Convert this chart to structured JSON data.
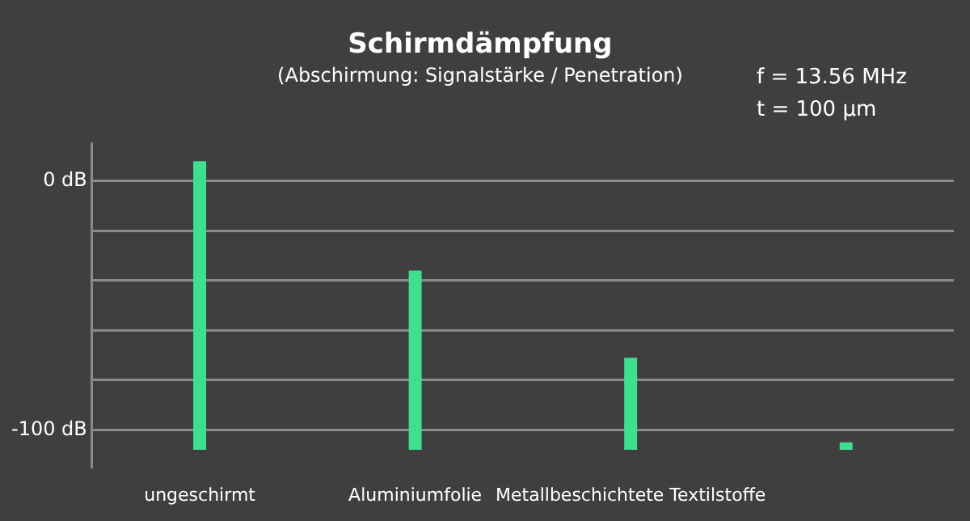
{
  "chart_data": {
    "type": "bar",
    "title": "Schirmdämpfung",
    "subtitle": "(Abschirmung: Signalstärke / Penetration)",
    "categories": [
      "ungeschirmt",
      "Aluminiumfolie",
      "Metallbeschichtete Textilstoffe",
      null
    ],
    "base": [
      -108,
      -108,
      -108,
      -108
    ],
    "values": [
      116,
      72,
      37,
      3
    ],
    "color": "#3ee08f",
    "ylim": [
      -115,
      15
    ],
    "yticks": [
      {
        "value": -100,
        "label": "-100 dB"
      },
      {
        "value": -80,
        "label": null
      },
      {
        "value": -60,
        "label": null
      },
      {
        "value": -40,
        "label": null
      },
      {
        "value": -20,
        "label": null
      },
      {
        "value": 0,
        "label": "0 dB"
      }
    ],
    "grid": "y",
    "annotations": [
      "f = 13.56 MHz",
      "t = 100 µm"
    ]
  }
}
